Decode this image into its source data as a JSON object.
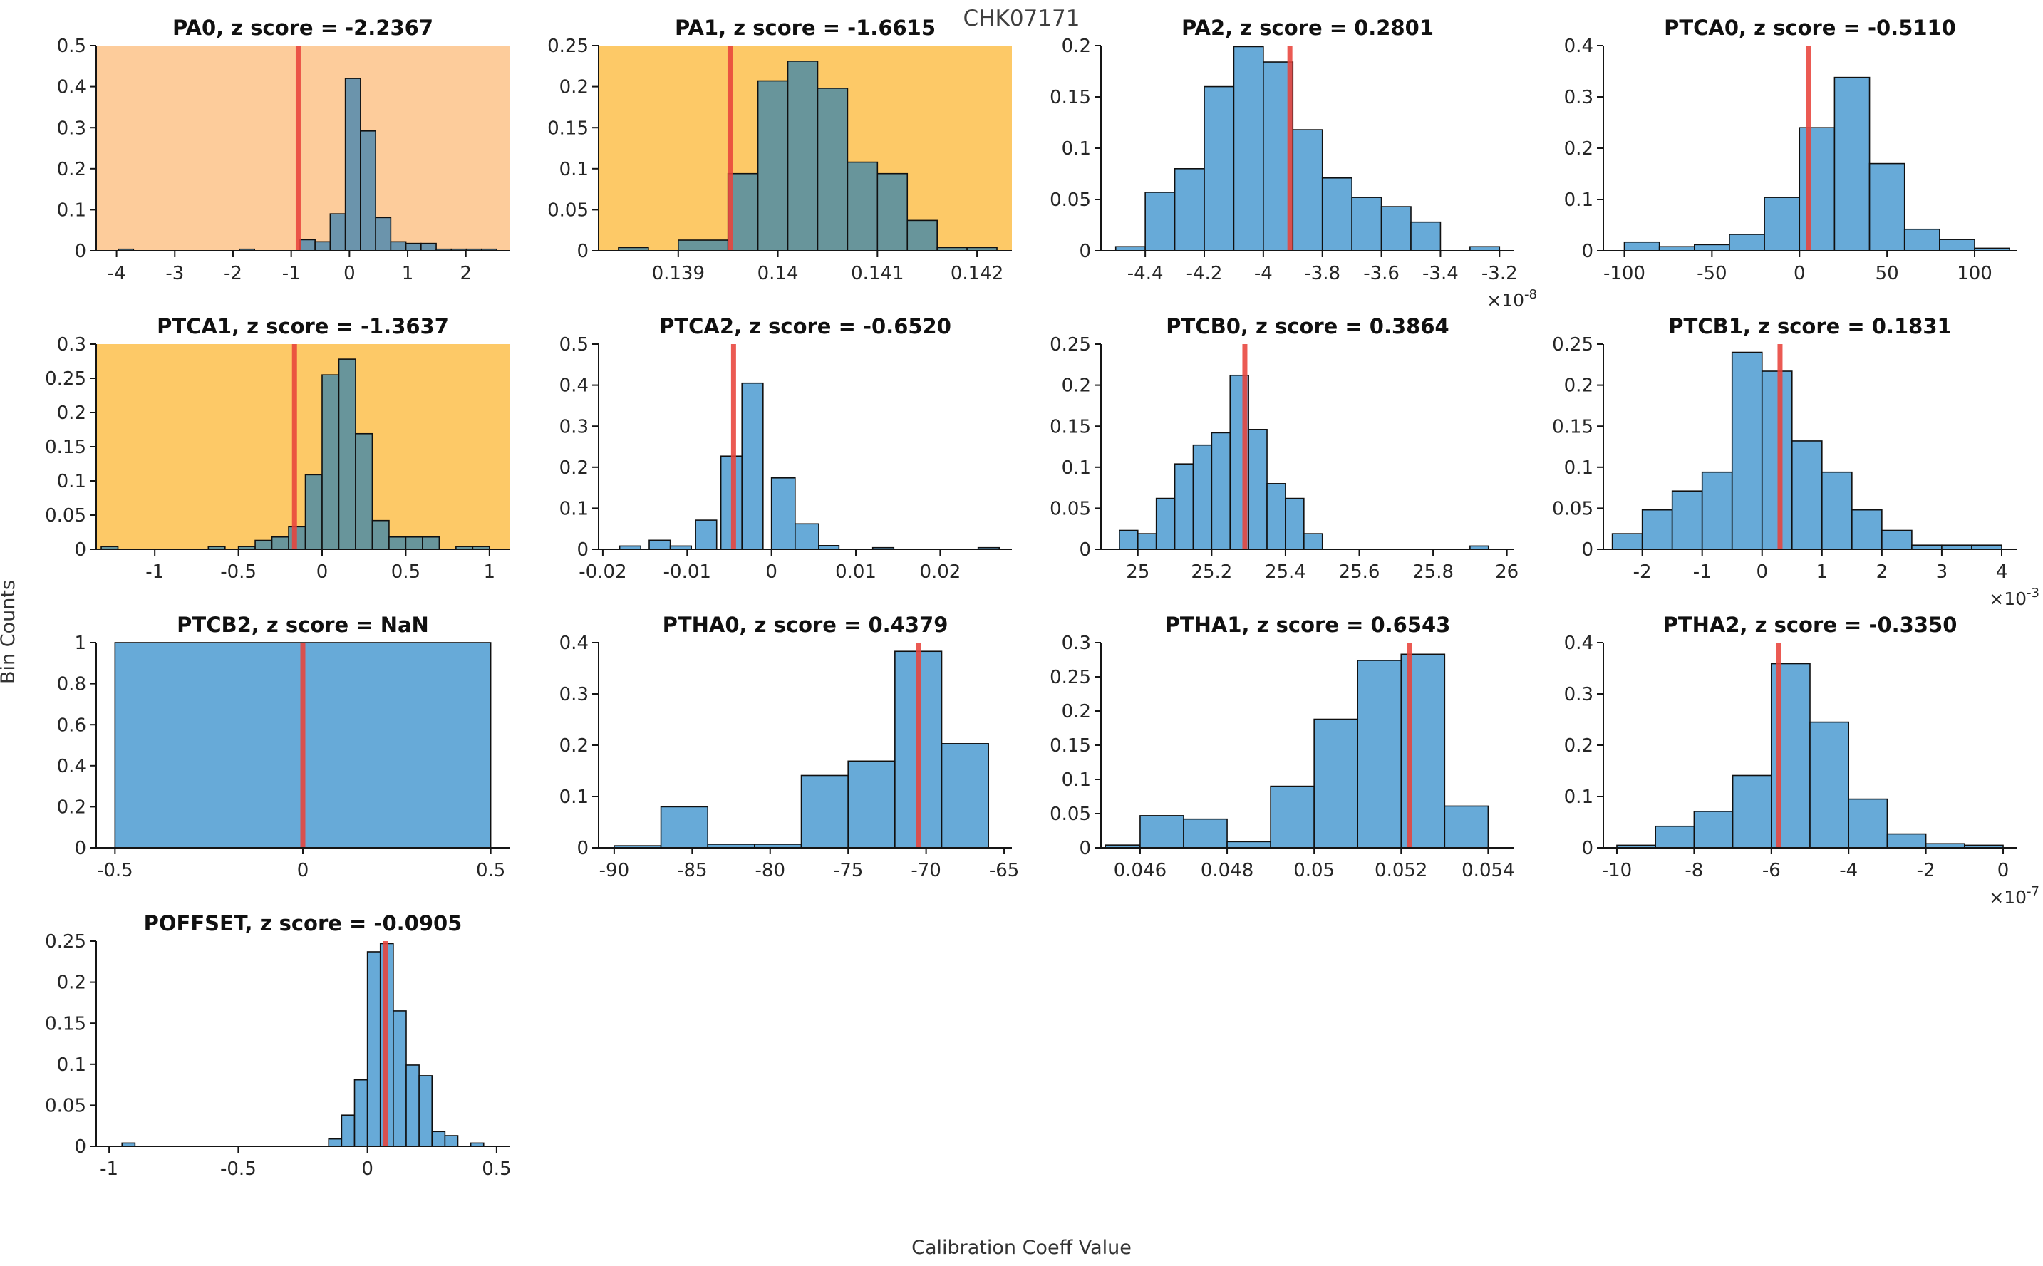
{
  "figure": {
    "title": "CHK07171",
    "xlabel": "Calibration Coeff Value",
    "ylabel": "Bin Counts"
  },
  "colors": {
    "bar_default": "#67aad8",
    "bar_on_orange": "#6b94ac",
    "bar_on_yellow": "#68959b",
    "bar_edge": "#101010",
    "bg_orange": "#fdcc9b",
    "bg_yellow": "#fdc967",
    "red_line": "#e8433b",
    "axis": "#151515",
    "tick_text": "#262626",
    "title_text": "#111111"
  },
  "chart_data": [
    {
      "type": "histogram",
      "name": "PA0",
      "title": "PA0, z score = -2.2367",
      "z_score": -2.2367,
      "background": "orange",
      "xlim": [
        -4.35,
        2.75
      ],
      "ylim": [
        0,
        0.5
      ],
      "xticks": [
        -4,
        -3,
        -2,
        -1,
        0,
        1,
        2
      ],
      "yticks": [
        0,
        0.1,
        0.2,
        0.3,
        0.4,
        0.5
      ],
      "x_scale_exponent": null,
      "red_line_x": -0.88,
      "bars": [
        [
          -3.97,
          -3.71,
          0.004
        ],
        [
          -1.89,
          -1.63,
          0.004
        ],
        [
          -0.85,
          -0.59,
          0.027
        ],
        [
          -0.59,
          -0.33,
          0.022
        ],
        [
          -0.33,
          -0.07,
          0.09
        ],
        [
          -0.07,
          0.19,
          0.42
        ],
        [
          0.19,
          0.45,
          0.292
        ],
        [
          0.45,
          0.71,
          0.081
        ],
        [
          0.71,
          0.97,
          0.022
        ],
        [
          0.97,
          1.23,
          0.018
        ],
        [
          1.23,
          1.49,
          0.018
        ],
        [
          1.49,
          1.75,
          0.004
        ],
        [
          1.75,
          2.01,
          0.004
        ],
        [
          2.01,
          2.27,
          0.004
        ],
        [
          2.27,
          2.53,
          0.004
        ]
      ]
    },
    {
      "type": "histogram",
      "name": "PA1",
      "title": "PA1, z score = -1.6615",
      "z_score": -1.6615,
      "background": "yellow",
      "xlim": [
        0.1382,
        0.14235
      ],
      "ylim": [
        0,
        0.25
      ],
      "xticks": [
        0.139,
        0.14,
        0.141,
        0.142
      ],
      "yticks": [
        0,
        0.05,
        0.1,
        0.15,
        0.2,
        0.25
      ],
      "x_scale_exponent": null,
      "red_line_x": 0.13952,
      "bars": [
        [
          0.1384,
          0.1387,
          0.004
        ],
        [
          0.139,
          0.1395,
          0.013
        ],
        [
          0.1395,
          0.1398,
          0.094
        ],
        [
          0.1398,
          0.1401,
          0.207
        ],
        [
          0.1401,
          0.1404,
          0.231
        ],
        [
          0.1404,
          0.1407,
          0.198
        ],
        [
          0.1407,
          0.141,
          0.108
        ],
        [
          0.141,
          0.1413,
          0.094
        ],
        [
          0.1413,
          0.1416,
          0.037
        ],
        [
          0.1416,
          0.1419,
          0.004
        ],
        [
          0.1419,
          0.1422,
          0.004
        ]
      ]
    },
    {
      "type": "histogram",
      "name": "PA2",
      "title": "PA2, z score = 0.2801",
      "z_score": 0.2801,
      "background": "white",
      "xlim": [
        -4.55,
        -3.15
      ],
      "ylim": [
        0,
        0.2
      ],
      "xticks": [
        -4.4,
        -4.2,
        -4,
        -3.8,
        -3.6,
        -3.4,
        -3.2
      ],
      "yticks": [
        0,
        0.05,
        0.1,
        0.15,
        0.2
      ],
      "x_scale_exponent": "-8",
      "red_line_x": -3.91,
      "bars": [
        [
          -4.5,
          -4.4,
          0.004
        ],
        [
          -4.4,
          -4.3,
          0.057
        ],
        [
          -4.3,
          -4.2,
          0.08
        ],
        [
          -4.2,
          -4.1,
          0.16
        ],
        [
          -4.1,
          -4.0,
          0.199
        ],
        [
          -4.0,
          -3.9,
          0.184
        ],
        [
          -3.9,
          -3.8,
          0.118
        ],
        [
          -3.8,
          -3.7,
          0.071
        ],
        [
          -3.7,
          -3.6,
          0.052
        ],
        [
          -3.6,
          -3.5,
          0.043
        ],
        [
          -3.5,
          -3.4,
          0.028
        ],
        [
          -3.3,
          -3.2,
          0.004
        ]
      ]
    },
    {
      "type": "histogram",
      "name": "PTCA0",
      "title": "PTCA0, z score = -0.5110",
      "z_score": -0.511,
      "background": "white",
      "xlim": [
        -112,
        124
      ],
      "ylim": [
        0,
        0.4
      ],
      "xticks": [
        -100,
        -50,
        0,
        50,
        100
      ],
      "yticks": [
        0,
        0.1,
        0.2,
        0.3,
        0.4
      ],
      "x_scale_exponent": null,
      "red_line_x": 5,
      "bars": [
        [
          -100,
          -80,
          0.017
        ],
        [
          -80,
          -60,
          0.008
        ],
        [
          -60,
          -40,
          0.012
        ],
        [
          -40,
          -20,
          0.032
        ],
        [
          -20,
          0,
          0.104
        ],
        [
          0,
          20,
          0.24
        ],
        [
          20,
          40,
          0.338
        ],
        [
          40,
          60,
          0.17
        ],
        [
          60,
          80,
          0.042
        ],
        [
          80,
          100,
          0.022
        ],
        [
          100,
          120,
          0.005
        ]
      ]
    },
    {
      "type": "histogram",
      "name": "PTCA1",
      "title": "PTCA1, z score = -1.3637",
      "z_score": -1.3637,
      "background": "yellow",
      "xlim": [
        -1.35,
        1.12
      ],
      "ylim": [
        0,
        0.3
      ],
      "xticks": [
        -1,
        -0.5,
        0,
        0.5,
        1
      ],
      "yticks": [
        0,
        0.05,
        0.1,
        0.15,
        0.2,
        0.25,
        0.3
      ],
      "x_scale_exponent": null,
      "red_line_x": -0.165,
      "bars": [
        [
          -1.32,
          -1.22,
          0.004
        ],
        [
          -0.68,
          -0.58,
          0.004
        ],
        [
          -0.5,
          -0.4,
          0.004
        ],
        [
          -0.4,
          -0.3,
          0.013
        ],
        [
          -0.3,
          -0.2,
          0.018
        ],
        [
          -0.2,
          -0.1,
          0.033
        ],
        [
          -0.1,
          0,
          0.109
        ],
        [
          0,
          0.1,
          0.255
        ],
        [
          0.1,
          0.2,
          0.278
        ],
        [
          0.2,
          0.3,
          0.169
        ],
        [
          0.3,
          0.4,
          0.042
        ],
        [
          0.4,
          0.5,
          0.018
        ],
        [
          0.5,
          0.6,
          0.018
        ],
        [
          0.6,
          0.7,
          0.018
        ],
        [
          0.8,
          0.9,
          0.004
        ],
        [
          0.9,
          1.0,
          0.004
        ]
      ]
    },
    {
      "type": "histogram",
      "name": "PTCA2",
      "title": "PTCA2, z score = -0.6520",
      "z_score": -0.652,
      "background": "white",
      "xlim": [
        -0.0205,
        0.0285
      ],
      "ylim": [
        0,
        0.5
      ],
      "xticks": [
        -0.02,
        -0.01,
        0,
        0.01,
        0.02
      ],
      "yticks": [
        0,
        0.1,
        0.2,
        0.3,
        0.4,
        0.5
      ],
      "x_scale_exponent": null,
      "red_line_x": -0.0045,
      "bars": [
        [
          -0.018,
          -0.0155,
          0.008
        ],
        [
          -0.0145,
          -0.012,
          0.022
        ],
        [
          -0.012,
          -0.0095,
          0.008
        ],
        [
          -0.009,
          -0.0065,
          0.071
        ],
        [
          -0.006,
          -0.0035,
          0.227
        ],
        [
          -0.0035,
          -0.001,
          0.405
        ],
        [
          0.0,
          0.0028,
          0.174
        ],
        [
          0.0028,
          0.0056,
          0.062
        ],
        [
          0.0056,
          0.008,
          0.009
        ],
        [
          0.012,
          0.0145,
          0.004
        ],
        [
          0.0245,
          0.027,
          0.004
        ]
      ]
    },
    {
      "type": "histogram",
      "name": "PTCB0",
      "title": "PTCB0, z score = 0.3864",
      "z_score": 0.3864,
      "background": "white",
      "xlim": [
        24.9,
        26.02
      ],
      "ylim": [
        0,
        0.25
      ],
      "xticks": [
        25,
        25.2,
        25.4,
        25.6,
        25.8,
        26
      ],
      "yticks": [
        0,
        0.05,
        0.1,
        0.15,
        0.2,
        0.25
      ],
      "x_scale_exponent": null,
      "red_line_x": 25.29,
      "bars": [
        [
          24.95,
          25.0,
          0.023
        ],
        [
          25.0,
          25.05,
          0.019
        ],
        [
          25.05,
          25.1,
          0.062
        ],
        [
          25.1,
          25.15,
          0.104
        ],
        [
          25.15,
          25.2,
          0.127
        ],
        [
          25.2,
          25.25,
          0.142
        ],
        [
          25.25,
          25.3,
          0.212
        ],
        [
          25.3,
          25.35,
          0.146
        ],
        [
          25.35,
          25.4,
          0.08
        ],
        [
          25.4,
          25.45,
          0.062
        ],
        [
          25.45,
          25.5,
          0.019
        ],
        [
          25.9,
          25.95,
          0.004
        ]
      ]
    },
    {
      "type": "histogram",
      "name": "PTCB1",
      "title": "PTCB1, z score = 0.1831",
      "z_score": 0.1831,
      "background": "white",
      "xlim": [
        -2.65,
        4.25
      ],
      "ylim": [
        0,
        0.25
      ],
      "xticks": [
        -2,
        -1,
        0,
        1,
        2,
        3,
        4
      ],
      "yticks": [
        0,
        0.05,
        0.1,
        0.15,
        0.2,
        0.25
      ],
      "x_scale_exponent": "-3",
      "red_line_x": 0.3,
      "bars": [
        [
          -2.5,
          -2,
          0.019
        ],
        [
          -2,
          -1.5,
          0.048
        ],
        [
          -1.5,
          -1,
          0.071
        ],
        [
          -1,
          -0.5,
          0.094
        ],
        [
          -0.5,
          0,
          0.24
        ],
        [
          0,
          0.5,
          0.217
        ],
        [
          0.5,
          1,
          0.132
        ],
        [
          1,
          1.5,
          0.094
        ],
        [
          1.5,
          2,
          0.048
        ],
        [
          2,
          2.5,
          0.023
        ],
        [
          2.5,
          3,
          0.005
        ],
        [
          3,
          3.5,
          0.005
        ],
        [
          3.5,
          4,
          0.005
        ]
      ]
    },
    {
      "type": "histogram",
      "name": "PTCB2",
      "title": "PTCB2, z score = NaN",
      "z_score": null,
      "background": "white",
      "xlim": [
        -0.55,
        0.55
      ],
      "ylim": [
        0,
        1
      ],
      "xticks": [
        -0.5,
        0,
        0.5
      ],
      "yticks": [
        0,
        0.2,
        0.4,
        0.6,
        0.8,
        1
      ],
      "x_scale_exponent": null,
      "red_line_x": 0,
      "bars": [
        [
          -0.5,
          0.5,
          1
        ]
      ]
    },
    {
      "type": "histogram",
      "name": "PTHA0",
      "title": "PTHA0, z score = 0.4379",
      "z_score": 0.4379,
      "background": "white",
      "xlim": [
        -91,
        -64.5
      ],
      "ylim": [
        0,
        0.4
      ],
      "xticks": [
        -90,
        -85,
        -80,
        -75,
        -70,
        -65
      ],
      "yticks": [
        0,
        0.1,
        0.2,
        0.3,
        0.4
      ],
      "x_scale_exponent": null,
      "red_line_x": -70.5,
      "bars": [
        [
          -90,
          -87,
          0.004
        ],
        [
          -87,
          -84,
          0.08
        ],
        [
          -84,
          -81,
          0.007
        ],
        [
          -81,
          -78,
          0.007
        ],
        [
          -78,
          -75,
          0.141
        ],
        [
          -75,
          -72,
          0.169
        ],
        [
          -72,
          -69,
          0.383
        ],
        [
          -69,
          -66,
          0.203
        ]
      ]
    },
    {
      "type": "histogram",
      "name": "PTHA1",
      "title": "PTHA1, z score = 0.6543",
      "z_score": 0.6543,
      "background": "white",
      "xlim": [
        0.0451,
        0.0546
      ],
      "ylim": [
        0,
        0.3
      ],
      "xticks": [
        0.046,
        0.048,
        0.05,
        0.052,
        0.054
      ],
      "yticks": [
        0,
        0.05,
        0.1,
        0.15,
        0.2,
        0.25,
        0.3
      ],
      "x_scale_exponent": null,
      "red_line_x": 0.0522,
      "bars": [
        [
          0.0452,
          0.046,
          0.004
        ],
        [
          0.046,
          0.047,
          0.047
        ],
        [
          0.047,
          0.048,
          0.042
        ],
        [
          0.048,
          0.049,
          0.009
        ],
        [
          0.049,
          0.05,
          0.09
        ],
        [
          0.05,
          0.051,
          0.188
        ],
        [
          0.051,
          0.052,
          0.274
        ],
        [
          0.052,
          0.053,
          0.283
        ],
        [
          0.053,
          0.054,
          0.061
        ]
      ]
    },
    {
      "type": "histogram",
      "name": "PTHA2",
      "title": "PTHA2, z score = -0.3350",
      "z_score": -0.335,
      "background": "white",
      "xlim": [
        -10.35,
        0.35
      ],
      "ylim": [
        0,
        0.4
      ],
      "xticks": [
        -10,
        -8,
        -6,
        -4,
        -2,
        0
      ],
      "yticks": [
        0,
        0.1,
        0.2,
        0.3,
        0.4
      ],
      "x_scale_exponent": "-7",
      "red_line_x": -5.82,
      "bars": [
        [
          -10,
          -9,
          0.005
        ],
        [
          -9,
          -8,
          0.042
        ],
        [
          -8,
          -7,
          0.071
        ],
        [
          -7,
          -6,
          0.141
        ],
        [
          -6,
          -5,
          0.359
        ],
        [
          -5,
          -4,
          0.245
        ],
        [
          -4,
          -3,
          0.095
        ],
        [
          -3,
          -2,
          0.027
        ],
        [
          -2,
          -1,
          0.008
        ],
        [
          -1,
          0,
          0.005
        ]
      ]
    },
    {
      "type": "histogram",
      "name": "POFFSET",
      "title": "POFFSET, z score = -0.0905",
      "z_score": -0.0905,
      "background": "white",
      "xlim": [
        -1.05,
        0.55
      ],
      "ylim": [
        0,
        0.25
      ],
      "xticks": [
        -1,
        -0.5,
        0,
        0.5
      ],
      "yticks": [
        0,
        0.05,
        0.1,
        0.15,
        0.2,
        0.25
      ],
      "x_scale_exponent": null,
      "red_line_x": 0.07,
      "bars": [
        [
          -0.95,
          -0.9,
          0.004
        ],
        [
          -0.15,
          -0.1,
          0.009
        ],
        [
          -0.1,
          -0.05,
          0.038
        ],
        [
          -0.05,
          0,
          0.081
        ],
        [
          0,
          0.05,
          0.237
        ],
        [
          0.05,
          0.1,
          0.247
        ],
        [
          0.1,
          0.15,
          0.165
        ],
        [
          0.15,
          0.2,
          0.099
        ],
        [
          0.2,
          0.25,
          0.086
        ],
        [
          0.25,
          0.3,
          0.018
        ],
        [
          0.3,
          0.35,
          0.013
        ],
        [
          0.4,
          0.45,
          0.004
        ]
      ]
    }
  ]
}
